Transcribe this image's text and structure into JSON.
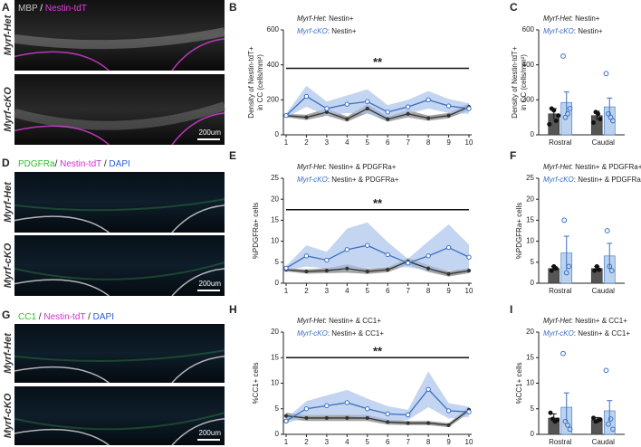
{
  "image_panels": [
    {
      "letter": "A",
      "stain": [
        {
          "text": "MBP",
          "color": "#c8c8c8"
        },
        {
          "text": " / ",
          "color": "#ffffff"
        },
        {
          "text": "Nestin-tdT",
          "color": "#e040e0"
        }
      ],
      "rows": [
        "Myrf-Het",
        "Myrf-cKO"
      ],
      "scale_bar": "200um"
    },
    {
      "letter": "D",
      "stain": [
        {
          "text": "PDGFRa",
          "color": "#33bb33"
        },
        {
          "text": "/ ",
          "color": "#222222"
        },
        {
          "text": "Nestin-tdT",
          "color": "#d030d0"
        },
        {
          "text": " / ",
          "color": "#222222"
        },
        {
          "text": "DAPI",
          "color": "#2a5bd7"
        }
      ],
      "rows": [
        "Myrf-Het",
        "Myrf-cKO"
      ],
      "scale_bar": "200um"
    },
    {
      "letter": "G",
      "stain": [
        {
          "text": "CC1",
          "color": "#33bb33"
        },
        {
          "text": " / ",
          "color": "#222222"
        },
        {
          "text": "Nestin-tdT",
          "color": "#d030d0"
        },
        {
          "text": " / ",
          "color": "#222222"
        },
        {
          "text": "DAPI",
          "color": "#2a5bd7"
        }
      ],
      "rows": [
        "Myrf-Het",
        "Myrf-cKO"
      ],
      "scale_bar": "200um"
    }
  ],
  "chart_data": [
    {
      "type": "line",
      "panel": "B",
      "ylabel": [
        "Density of Nestin-tdT+",
        "in CC (cells/mm²)"
      ],
      "categories": [
        "1",
        "2",
        "3",
        "4",
        "5",
        "6",
        "7",
        "8",
        "9",
        "10"
      ],
      "ylim": [
        0,
        600
      ],
      "yticks": [
        0,
        200,
        400,
        600
      ],
      "annotation": {
        "text": "**",
        "y": 380
      },
      "series": [
        {
          "name": "Myrf-Het",
          "legend_text": ": Nestin+",
          "color": "#333333",
          "band_color": "#666666",
          "values": [
            110,
            100,
            130,
            90,
            150,
            90,
            120,
            95,
            110,
            160
          ],
          "errors": [
            10,
            15,
            20,
            15,
            25,
            15,
            20,
            15,
            15,
            20
          ]
        },
        {
          "name": "Myrf-cKO",
          "legend_text": ": Nestin+",
          "color": "#3a6fc4",
          "band_color": "#a9c3ea",
          "values": [
            110,
            220,
            150,
            175,
            190,
            130,
            160,
            200,
            165,
            150
          ],
          "errors": [
            10,
            60,
            40,
            50,
            70,
            40,
            40,
            50,
            40,
            30
          ]
        }
      ]
    },
    {
      "type": "bar",
      "panel": "C",
      "ylabel": [
        "Density of Nestin-tdT+",
        "in CC (cells/mm²)"
      ],
      "categories": [
        "Rostral",
        "Caudal"
      ],
      "ylim": [
        0,
        600
      ],
      "yticks": [
        0,
        200,
        400,
        600
      ],
      "series": [
        {
          "name": "Myrf-Het",
          "legend_text": ": Nestin+",
          "color": "#555555",
          "point_color": "#111111",
          "values": [
            120,
            110
          ],
          "errors": [
            30,
            25
          ],
          "points": [
            [
              60,
              150,
              140,
              80,
              110
            ],
            [
              70,
              130,
              120,
              90
            ]
          ]
        },
        {
          "name": "Myrf-cKO",
          "legend_text": ": Nestin+",
          "color": "#bcd3ee",
          "point_color": "#3a6fc4",
          "values": [
            185,
            160
          ],
          "errors": [
            60,
            50
          ],
          "points": [
            [
              450,
              100,
              120,
              150
            ],
            [
              350,
              120,
              100,
              80
            ]
          ]
        }
      ]
    },
    {
      "type": "line",
      "panel": "E",
      "ylabel": [
        "%PDGFRa+ cells"
      ],
      "categories": [
        "1",
        "2",
        "3",
        "4",
        "5",
        "6",
        "7",
        "8",
        "9",
        "10"
      ],
      "ylim": [
        0,
        25
      ],
      "yticks": [
        0,
        5,
        10,
        15,
        20,
        25
      ],
      "annotation": {
        "text": "**",
        "y": 17.5
      },
      "series": [
        {
          "name": "Myrf-Het",
          "legend_text": ": Nestin+ & PDGFRa+",
          "color": "#333333",
          "band_color": "#666666",
          "values": [
            3.2,
            2.8,
            3.0,
            3.5,
            2.8,
            3.2,
            5.2,
            3.5,
            2.2,
            3.0
          ],
          "errors": [
            0.4,
            0.5,
            0.6,
            1.0,
            0.6,
            0.6,
            0.8,
            0.8,
            0.6,
            0.6
          ]
        },
        {
          "name": "Myrf-cKO",
          "legend_text": ": Nestin+ & PDGFRa+",
          "color": "#3a6fc4",
          "band_color": "#a9c3ea",
          "values": [
            3.6,
            6.5,
            5.5,
            8.0,
            9.0,
            6.8,
            4.8,
            6.5,
            8.5,
            6.2
          ],
          "errors": [
            0.5,
            2.5,
            2.0,
            5.0,
            5.5,
            3.0,
            1.0,
            3.5,
            5.5,
            3.0
          ]
        }
      ]
    },
    {
      "type": "bar",
      "panel": "F",
      "ylabel": [
        "%PDGFRa+ cells"
      ],
      "categories": [
        "Rostral",
        "Caudal"
      ],
      "ylim": [
        0,
        25
      ],
      "yticks": [
        0,
        5,
        10,
        15,
        20,
        25
      ],
      "series": [
        {
          "name": "Myrf-Het",
          "legend_text": ": Nestin+ & PDGFRa+",
          "color": "#555555",
          "point_color": "#111111",
          "values": [
            3.5,
            3.5
          ],
          "errors": [
            0.5,
            0.5
          ],
          "points": [
            [
              3,
              4,
              3.5
            ],
            [
              3,
              4,
              3.2
            ]
          ]
        },
        {
          "name": "Myrf-cKO",
          "legend_text": ": Nestin+ & PDGFRa+",
          "color": "#bcd3ee",
          "point_color": "#3a6fc4",
          "values": [
            7.2,
            6.5
          ],
          "errors": [
            4,
            3
          ],
          "points": [
            [
              15,
              2.5,
              4
            ],
            [
              12.5,
              4,
              3
            ]
          ]
        }
      ]
    },
    {
      "type": "line",
      "panel": "H",
      "ylabel": [
        "%CC1+ cells"
      ],
      "categories": [
        "1",
        "2",
        "3",
        "4",
        "5",
        "6",
        "7",
        "8",
        "9",
        "10"
      ],
      "ylim": [
        0,
        20
      ],
      "yticks": [
        0,
        5,
        10,
        15,
        20
      ],
      "annotation": {
        "text": "**",
        "y": 15
      },
      "series": [
        {
          "name": "Myrf-Het",
          "legend_text": ": Nestin+ & CC1+",
          "color": "#333333",
          "band_color": "#666666",
          "values": [
            3.6,
            3.2,
            3.2,
            3.2,
            3.2,
            2.4,
            2.2,
            2.2,
            1.8,
            4.8
          ],
          "errors": [
            0.6,
            0.6,
            0.6,
            0.6,
            0.6,
            0.5,
            0.4,
            0.4,
            0.4,
            0.6
          ]
        },
        {
          "name": "Myrf-cKO",
          "legend_text": ": Nestin+ & CC1+",
          "color": "#3a6fc4",
          "band_color": "#a9c3ea",
          "values": [
            2.6,
            5.0,
            5.6,
            6.2,
            5.0,
            4.0,
            3.8,
            8.8,
            4.6,
            4.4
          ],
          "errors": [
            0.5,
            1.5,
            2.0,
            2.5,
            2.0,
            1.5,
            1.0,
            3.5,
            1.5,
            1.0
          ]
        }
      ]
    },
    {
      "type": "bar",
      "panel": "I",
      "ylabel": [
        "%CC1+ cells"
      ],
      "categories": [
        "Rostral",
        "Caudal"
      ],
      "ylim": [
        0,
        20
      ],
      "yticks": [
        0,
        5,
        10,
        15,
        20
      ],
      "series": [
        {
          "name": "Myrf-Het",
          "legend_text": ": Nestin+ & CC1+",
          "color": "#555555",
          "point_color": "#111111",
          "values": [
            3.2,
            2.8
          ],
          "errors": [
            0.8,
            0.5
          ],
          "points": [
            [
              4.2,
              3.0,
              2.5,
              2.8
            ],
            [
              3.2,
              2.5,
              2.7,
              2.9
            ]
          ]
        },
        {
          "name": "Myrf-cKO",
          "legend_text": ": Nestin+ & CC1+",
          "color": "#bcd3ee",
          "point_color": "#3a6fc4",
          "values": [
            5.3,
            4.6
          ],
          "errors": [
            2.8,
            2
          ],
          "points": [
            [
              15.8,
              2.5,
              1.8,
              1.0
            ],
            [
              12.5,
              2,
              3,
              1
            ]
          ]
        }
      ]
    }
  ]
}
